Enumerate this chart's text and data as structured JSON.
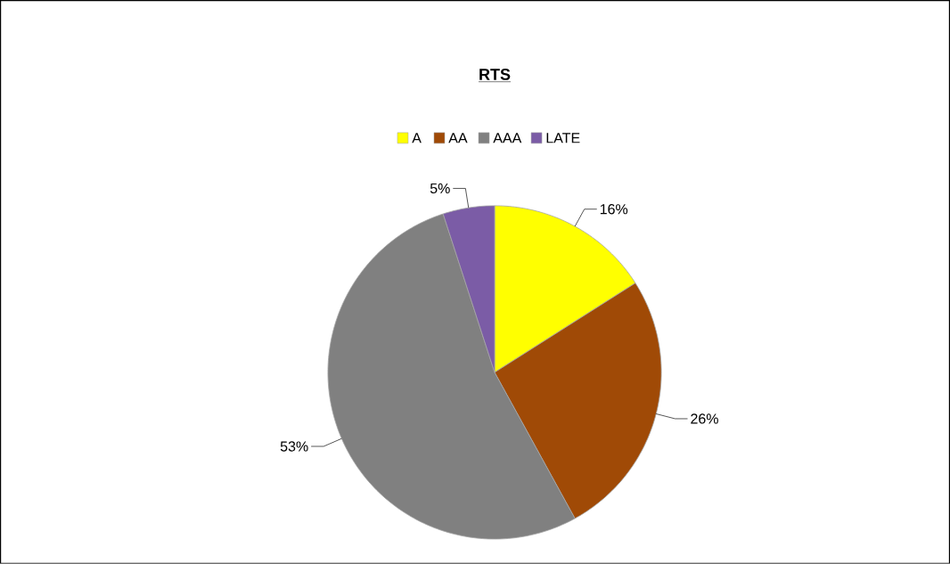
{
  "chart_data": {
    "type": "pie",
    "title": "RTS",
    "categories": [
      "A",
      "AA",
      "AAA",
      "LATE"
    ],
    "values": [
      16,
      26,
      53,
      5
    ],
    "colors": [
      "#ffff00",
      "#a04a06",
      "#808080",
      "#7b5ca6"
    ],
    "value_labels": [
      "16%",
      "26%",
      "53%",
      "5%"
    ],
    "legend": "top"
  }
}
